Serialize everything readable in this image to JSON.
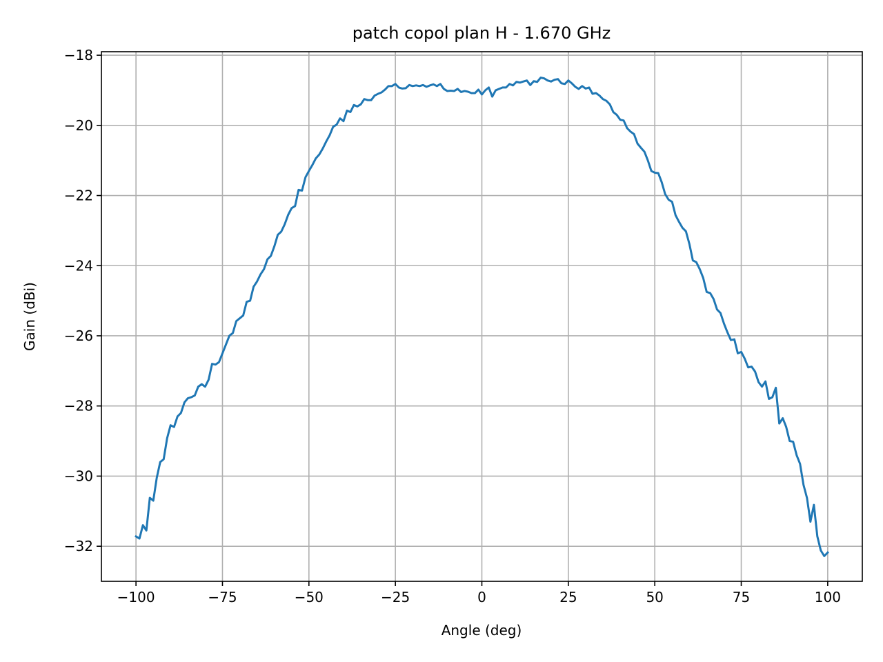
{
  "chart_data": {
    "type": "line",
    "title": "patch copol plan H - 1.670 GHz",
    "xlabel": "Angle (deg)",
    "ylabel": "Gain (dBi)",
    "xlim": [
      -110,
      110
    ],
    "ylim": [
      -33,
      -17.9
    ],
    "x_ticks": [
      -100,
      -75,
      -50,
      -25,
      0,
      25,
      50,
      75,
      100
    ],
    "x_tick_labels": [
      "−100",
      "−75",
      "−50",
      "−25",
      "0",
      "25",
      "50",
      "75",
      "100"
    ],
    "y_ticks": [
      -32,
      -30,
      -28,
      -26,
      -24,
      -22,
      -20,
      -18
    ],
    "y_tick_labels": [
      "−32",
      "−30",
      "−28",
      "−26",
      "−24",
      "−22",
      "−20",
      "−18"
    ],
    "grid": true,
    "series": [
      {
        "color": "#1f77b4",
        "x": [
          -100,
          -99,
          -98,
          -97,
          -96,
          -95,
          -94,
          -93,
          -92,
          -91,
          -90,
          -89,
          -88,
          -87,
          -86,
          -85,
          -84,
          -83,
          -82,
          -81,
          -80,
          -79,
          -78,
          -77,
          -76,
          -75,
          -74,
          -73,
          -72,
          -71,
          -70,
          -69,
          -68,
          -67,
          -66,
          -65,
          -64,
          -63,
          -62,
          -61,
          -60,
          -59,
          -58,
          -57,
          -56,
          -55,
          -54,
          -53,
          -52,
          -51,
          -50,
          -49,
          -48,
          -47,
          -46,
          -45,
          -44,
          -43,
          -42,
          -41,
          -40,
          -39,
          -38,
          -37,
          -36,
          -35,
          -34,
          -33,
          -32,
          -31,
          -30,
          -29,
          -28,
          -27,
          -26,
          -25,
          -24,
          -23,
          -22,
          -21,
          -20,
          -19,
          -18,
          -17,
          -16,
          -15,
          -14,
          -13,
          -12,
          -11,
          -10,
          -9,
          -8,
          -7,
          -6,
          -5,
          -4,
          -3,
          -2,
          -1,
          0,
          1,
          2,
          3,
          4,
          5,
          6,
          7,
          8,
          9,
          10,
          11,
          12,
          13,
          14,
          15,
          16,
          17,
          18,
          19,
          20,
          21,
          22,
          23,
          24,
          25,
          26,
          27,
          28,
          29,
          30,
          31,
          32,
          33,
          34,
          35,
          36,
          37,
          38,
          39,
          40,
          41,
          42,
          43,
          44,
          45,
          46,
          47,
          48,
          49,
          50,
          51,
          52,
          53,
          54,
          55,
          56,
          57,
          58,
          59,
          60,
          61,
          62,
          63,
          64,
          65,
          66,
          67,
          68,
          69,
          70,
          71,
          72,
          73,
          74,
          75,
          76,
          77,
          78,
          79,
          80,
          81,
          82,
          83,
          84,
          85,
          86,
          87,
          88,
          89,
          90,
          91,
          92,
          93,
          94,
          95,
          96,
          97,
          98,
          99,
          100
        ],
        "y": [
          -31.72,
          -31.78,
          -31.4,
          -31.55,
          -30.62,
          -30.7,
          -30.05,
          -29.6,
          -29.52,
          -28.92,
          -28.55,
          -28.6,
          -28.3,
          -28.2,
          -27.9,
          -27.78,
          -27.75,
          -27.7,
          -27.45,
          -27.38,
          -27.45,
          -27.25,
          -26.8,
          -26.82,
          -26.75,
          -26.5,
          -26.25,
          -26.0,
          -25.92,
          -25.58,
          -25.5,
          -25.42,
          -25.03,
          -25.0,
          -24.6,
          -24.45,
          -24.25,
          -24.1,
          -23.82,
          -23.72,
          -23.45,
          -23.12,
          -23.03,
          -22.82,
          -22.55,
          -22.36,
          -22.3,
          -21.84,
          -21.86,
          -21.48,
          -21.3,
          -21.13,
          -20.94,
          -20.83,
          -20.66,
          -20.46,
          -20.28,
          -20.04,
          -19.98,
          -19.8,
          -19.88,
          -19.58,
          -19.62,
          -19.42,
          -19.46,
          -19.4,
          -19.25,
          -19.28,
          -19.28,
          -19.15,
          -19.1,
          -19.06,
          -18.98,
          -18.88,
          -18.88,
          -18.82,
          -18.92,
          -18.95,
          -18.94,
          -18.85,
          -18.88,
          -18.86,
          -18.88,
          -18.85,
          -18.9,
          -18.86,
          -18.83,
          -18.88,
          -18.82,
          -18.96,
          -19.02,
          -19.01,
          -19.02,
          -18.96,
          -19.05,
          -19.02,
          -19.04,
          -19.08,
          -19.08,
          -18.98,
          -19.12,
          -19.0,
          -18.92,
          -19.18,
          -19.0,
          -18.96,
          -18.92,
          -18.92,
          -18.82,
          -18.86,
          -18.76,
          -18.78,
          -18.75,
          -18.72,
          -18.85,
          -18.74,
          -18.76,
          -18.64,
          -18.66,
          -18.72,
          -18.75,
          -18.7,
          -18.68,
          -18.8,
          -18.82,
          -18.72,
          -18.8,
          -18.9,
          -18.96,
          -18.88,
          -18.95,
          -18.92,
          -19.1,
          -19.08,
          -19.15,
          -19.25,
          -19.3,
          -19.4,
          -19.62,
          -19.7,
          -19.84,
          -19.86,
          -20.08,
          -20.18,
          -20.25,
          -20.52,
          -20.64,
          -20.75,
          -21.0,
          -21.3,
          -21.35,
          -21.36,
          -21.62,
          -21.96,
          -22.12,
          -22.18,
          -22.56,
          -22.75,
          -22.92,
          -23.02,
          -23.38,
          -23.85,
          -23.9,
          -24.1,
          -24.35,
          -24.75,
          -24.78,
          -24.95,
          -25.25,
          -25.35,
          -25.65,
          -25.9,
          -26.12,
          -26.1,
          -26.5,
          -26.46,
          -26.65,
          -26.9,
          -26.88,
          -27.02,
          -27.32,
          -27.45,
          -27.3,
          -27.8,
          -27.75,
          -27.48,
          -28.5,
          -28.35,
          -28.6,
          -29.0,
          -29.02,
          -29.4,
          -29.65,
          -30.25,
          -30.62,
          -31.3,
          -30.82,
          -31.72,
          -32.12,
          -32.28,
          -32.18
        ]
      }
    ]
  }
}
